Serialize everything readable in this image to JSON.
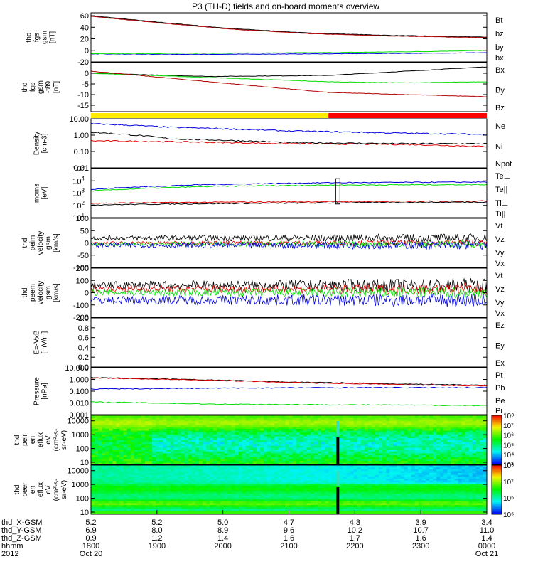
{
  "title": "P3 (TH-D) fields and on-board moments overview",
  "colors": {
    "black": "#000000",
    "red": "#e00000",
    "green": "#00dd00",
    "blue": "#0000dd",
    "yellow": "#ffee00",
    "barred": "#ff0000",
    "brown": "#b00000"
  },
  "chart_data": [
    {
      "type": "line",
      "panel": "fgs_mag",
      "ylabel": [
        "thd",
        "fgs",
        "gsm",
        "[nT]"
      ],
      "ylim": [
        -20,
        65
      ],
      "yticks": [
        "60",
        "40",
        "20",
        "0",
        "-20"
      ],
      "ytick_values": [
        60,
        40,
        20,
        0,
        -20
      ],
      "series": [
        {
          "name": "Bt",
          "color": "#000000",
          "points": [
            [
              0,
              60
            ],
            [
              0.15,
              50
            ],
            [
              0.35,
              38
            ],
            [
              0.55,
              30
            ],
            [
              0.75,
              26
            ],
            [
              1,
              23
            ]
          ]
        },
        {
          "name": "bz",
          "color": "#b00000",
          "points": [
            [
              0,
              59
            ],
            [
              0.15,
              49
            ],
            [
              0.35,
              37
            ],
            [
              0.55,
              29
            ],
            [
              0.75,
              25
            ],
            [
              1,
              22
            ]
          ]
        },
        {
          "name": "by",
          "color": "#00dd00",
          "points": [
            [
              0,
              -6
            ],
            [
              0.3,
              -5
            ],
            [
              0.6,
              -4
            ],
            [
              0.85,
              -2
            ],
            [
              1,
              0
            ]
          ]
        },
        {
          "name": "bx",
          "color": "#0000dd",
          "points": [
            [
              0,
              -8
            ],
            [
              0.3,
              -7
            ],
            [
              0.6,
              -6
            ],
            [
              0.85,
              -5
            ],
            [
              1,
              -4
            ]
          ]
        }
      ]
    },
    {
      "type": "line",
      "panel": "fgs_delta",
      "ylabel": [
        "thd",
        "fgs",
        "gsm",
        "-t89",
        "[nT]"
      ],
      "ylim": [
        -18,
        5
      ],
      "yticks": [
        "0",
        "-5",
        "-10",
        "-15"
      ],
      "ytick_values": [
        0,
        -5,
        -10,
        -15
      ],
      "series": [
        {
          "name": "Bx",
          "color": "#000000",
          "points": [
            [
              0,
              0
            ],
            [
              0.3,
              -1.5
            ],
            [
              0.6,
              -1
            ],
            [
              0.8,
              1
            ],
            [
              1,
              3
            ]
          ]
        },
        {
          "name": "By",
          "color": "#00dd00",
          "points": [
            [
              0,
              0
            ],
            [
              0.3,
              -2
            ],
            [
              0.6,
              -4
            ],
            [
              0.8,
              -4.5
            ],
            [
              1,
              -4
            ]
          ]
        },
        {
          "name": "Bz",
          "color": "#b00000",
          "points": [
            [
              0,
              1
            ],
            [
              0.3,
              -4
            ],
            [
              0.6,
              -9
            ],
            [
              0.8,
              -10
            ],
            [
              1,
              -11
            ]
          ]
        }
      ]
    },
    {
      "type": "line",
      "panel": "density",
      "scale": "log",
      "ylabel": [
        "Density",
        "[cm-3]"
      ],
      "ylim": [
        0.01,
        10
      ],
      "yticks": [
        "10.00",
        "1.00",
        "0.10",
        "0.01"
      ],
      "ytick_values": [
        10,
        1,
        0.1,
        0.01
      ],
      "series": [
        {
          "name": "Ne",
          "color": "#e00000",
          "points": [
            [
              0,
              0.45
            ],
            [
              0.2,
              0.4
            ],
            [
              0.5,
              0.3
            ],
            [
              0.8,
              0.27
            ],
            [
              1,
              0.2
            ]
          ]
        },
        {
          "name": "Ni",
          "color": "#000000",
          "points": [
            [
              0,
              1.5
            ],
            [
              0.2,
              0.6
            ],
            [
              0.5,
              0.35
            ],
            [
              0.8,
              0.3
            ],
            [
              1,
              0.3
            ]
          ]
        },
        {
          "name": "Npot",
          "color": "#0000dd",
          "points": [
            [
              0,
              5
            ],
            [
              0.2,
              3
            ],
            [
              0.5,
              1.8
            ],
            [
              0.8,
              1.3
            ],
            [
              1,
              1.1
            ]
          ]
        }
      ]
    },
    {
      "type": "line",
      "panel": "temperature",
      "scale": "log",
      "ylabel": [
        "moms",
        "[eV]"
      ],
      "ylim": [
        10,
        100000
      ],
      "yticks": [
        "10^5",
        "10^4",
        "10^3",
        "10^2",
        "10^1"
      ],
      "ytick_values": [
        100000,
        10000,
        1000,
        100,
        10
      ],
      "series": [
        {
          "name": "Te⊥",
          "color": "#e00000",
          "points": [
            [
              0,
              150
            ],
            [
              0.3,
              180
            ],
            [
              0.6,
              200
            ],
            [
              1,
              230
            ]
          ]
        },
        {
          "name": "Te||",
          "color": "#000000",
          "points": [
            [
              0,
              110
            ],
            [
              0.3,
              140
            ],
            [
              0.6,
              160
            ],
            [
              1,
              190
            ]
          ]
        },
        {
          "name": "Ti⊥",
          "color": "#0000dd",
          "points": [
            [
              0,
              2000
            ],
            [
              0.3,
              5000
            ],
            [
              0.6,
              7000
            ],
            [
              1,
              8000
            ]
          ]
        },
        {
          "name": "Ti||",
          "color": "#00dd00",
          "points": [
            [
              0,
              1500
            ],
            [
              0.3,
              3500
            ],
            [
              0.6,
              4500
            ],
            [
              1,
              5000
            ]
          ]
        }
      ]
    },
    {
      "type": "line",
      "panel": "peim_velocity",
      "ylabel": [
        "thd",
        "peim",
        "velocity",
        "gsm",
        "[km/s]"
      ],
      "ylim": [
        -100,
        100
      ],
      "yticks": [
        "100",
        "50",
        "0",
        "-50",
        "-100"
      ],
      "ytick_values": [
        100,
        50,
        0,
        -50,
        -100
      ],
      "series": [
        {
          "name": "Vt",
          "color": "#000000",
          "level": 20,
          "amp": 15
        },
        {
          "name": "Vz",
          "color": "#e00000",
          "level": 0,
          "amp": 10
        },
        {
          "name": "Vy",
          "color": "#00dd00",
          "level": -5,
          "amp": 12
        },
        {
          "name": "Vx",
          "color": "#0000dd",
          "level": -10,
          "amp": 15
        }
      ]
    },
    {
      "type": "line",
      "panel": "peem_velocity",
      "ylabel": [
        "thd",
        "peem",
        "velocity",
        "gsm",
        "[km/s]"
      ],
      "ylim": [
        -200,
        200
      ],
      "yticks": [
        "200",
        "100",
        "0",
        "-100",
        "-200"
      ],
      "ytick_values": [
        200,
        100,
        0,
        -100,
        -200
      ],
      "series": [
        {
          "name": "Vt",
          "color": "#000000",
          "level": 60,
          "amp": 50
        },
        {
          "name": "Vz",
          "color": "#e00000",
          "level": 30,
          "amp": 40
        },
        {
          "name": "Vy",
          "color": "#00dd00",
          "level": 0,
          "amp": 40
        },
        {
          "name": "Vx",
          "color": "#0000dd",
          "level": -60,
          "amp": 50
        }
      ]
    },
    {
      "type": "line",
      "panel": "efield",
      "ylabel": [
        "E=-VxB",
        "[mV/m]"
      ],
      "ylim": [
        0,
        1
      ],
      "yticks": [
        "1.0",
        "0.8",
        "0.6",
        "0.4",
        "0.2",
        "0.0"
      ],
      "ytick_values": [
        1,
        0.8,
        0.6,
        0.4,
        0.2,
        0
      ],
      "series": [
        {
          "name": "Ez",
          "color": "#e00000"
        },
        {
          "name": "Ey",
          "color": "#00dd00"
        },
        {
          "name": "Ex",
          "color": "#0000dd"
        }
      ]
    },
    {
      "type": "line",
      "panel": "pressure",
      "scale": "log",
      "ylabel": [
        "Pressure",
        "[nPa]"
      ],
      "ylim": [
        0.001,
        10
      ],
      "yticks": [
        "10.000",
        "1.000",
        "0.100",
        "0.010",
        "0.001"
      ],
      "ytick_values": [
        10,
        1,
        0.1,
        0.01,
        0.001
      ],
      "series": [
        {
          "name": "Pt",
          "color": "#000000",
          "points": [
            [
              0,
              1.4
            ],
            [
              0.2,
              1.05
            ],
            [
              0.5,
              0.6
            ],
            [
              0.8,
              0.4
            ],
            [
              1,
              0.32
            ]
          ]
        },
        {
          "name": "Pb",
          "color": "#e00000",
          "points": [
            [
              0,
              1.35
            ],
            [
              0.2,
              1
            ],
            [
              0.5,
              0.55
            ],
            [
              0.8,
              0.35
            ],
            [
              1,
              0.28
            ]
          ]
        },
        {
          "name": "Pe",
          "color": "#00dd00",
          "points": [
            [
              0,
              0.012
            ],
            [
              0.3,
              0.008
            ],
            [
              0.6,
              0.007
            ],
            [
              1,
              0.006
            ]
          ]
        },
        {
          "name": "Pi",
          "color": "#0000dd",
          "points": [
            [
              0,
              0.15
            ],
            [
              0.3,
              0.18
            ],
            [
              0.6,
              0.2
            ],
            [
              1,
              0.2
            ]
          ]
        }
      ]
    },
    {
      "type": "heatmap",
      "panel": "peir",
      "ylabel": [
        "thd",
        "peir",
        "en",
        "eflux",
        "eV",
        "(cm²-s-",
        "sr-eV)"
      ],
      "ylim": [
        7,
        25000
      ],
      "yticks": [
        "10000",
        "1000",
        "100",
        "10"
      ],
      "ytick_values": [
        10000,
        1000,
        100,
        10
      ],
      "colorbar_ticks": [
        "10⁸",
        "10⁷",
        "10⁶",
        "10⁵",
        "10⁴",
        "10³"
      ],
      "colorbar_range": [
        1000,
        100000000
      ]
    },
    {
      "type": "heatmap",
      "panel": "peer",
      "ylabel": [
        "thd",
        "peer",
        "en",
        "eflux",
        "eV",
        "(cm²-s-",
        "sr-eV)"
      ],
      "ylim": [
        7,
        25000
      ],
      "yticks": [
        "10000",
        "1000",
        "100",
        "10"
      ],
      "ytick_values": [
        10000,
        1000,
        100,
        10
      ],
      "colorbar_ticks": [
        "10⁸",
        "10⁷",
        "10⁶",
        "10⁵"
      ],
      "colorbar_range": [
        100000,
        100000000
      ]
    }
  ],
  "mode_bar": {
    "segments": [
      {
        "to": 0.6,
        "color": "#ffee00"
      },
      {
        "to": 1,
        "color": "#ff0000"
      }
    ]
  },
  "time_axis": {
    "positions": [
      0,
      0.1667,
      0.3333,
      0.5,
      0.6667,
      0.8333,
      1
    ],
    "rows": [
      {
        "label": "thd_X-GSM",
        "values": [
          "5.2",
          "5.2",
          "5.0",
          "4.7",
          "4.3",
          "3.9",
          "3.4"
        ]
      },
      {
        "label": "thd_Y-GSM",
        "values": [
          "6.9",
          "8.0",
          "8.9",
          "9.6",
          "10.2",
          "10.7",
          "11.0"
        ]
      },
      {
        "label": "thd_Z-GSM",
        "values": [
          "0.9",
          "1.2",
          "1.4",
          "1.6",
          "1.7",
          "1.6",
          "1.4"
        ]
      },
      {
        "label": "hhmm",
        "values": [
          "1800",
          "1900",
          "2000",
          "2100",
          "2200",
          "2300",
          "0000"
        ]
      },
      {
        "label": "2012",
        "values": [
          "Oct 20",
          "",
          "",
          "",
          "",
          "",
          "Oct 21"
        ]
      }
    ]
  }
}
